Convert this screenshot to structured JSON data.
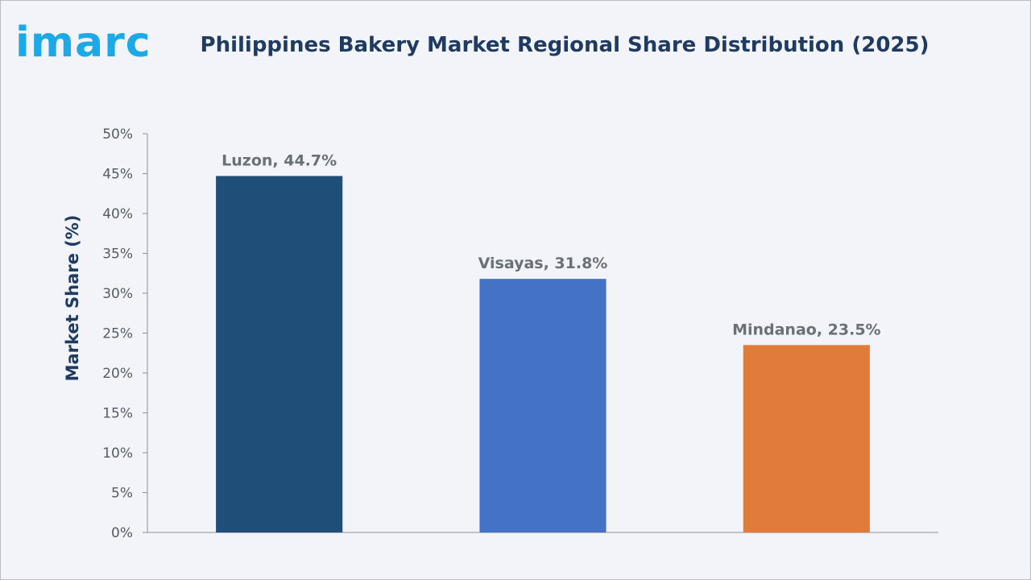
{
  "brand": {
    "logo_text": "imarc"
  },
  "chart_data": {
    "type": "bar",
    "title": "Philippines Bakery Market Regional Share Distribution (2025)",
    "xlabel": "",
    "ylabel": "Market Share (%)",
    "categories": [
      "Luzon",
      "Visayas",
      "Mindanao"
    ],
    "values": [
      44.7,
      31.8,
      23.5
    ],
    "data_labels": [
      "Luzon, 44.7%",
      "Visayas, 31.8%",
      "Mindanao, 23.5%"
    ],
    "colors": [
      "#1f4e79",
      "#4472c4",
      "#e07b39"
    ],
    "ylim": [
      0,
      50
    ],
    "yticks": [
      "0%",
      "5%",
      "10%",
      "15%",
      "20%",
      "25%",
      "30%",
      "35%",
      "40%",
      "45%",
      "50%"
    ],
    "grid": false,
    "legend": "none"
  }
}
